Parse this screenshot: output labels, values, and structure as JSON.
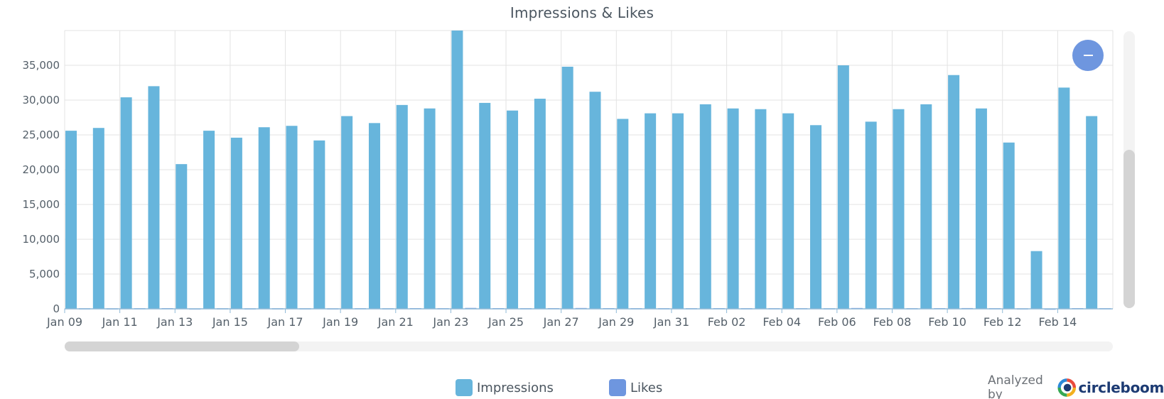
{
  "chart_data": {
    "type": "bar",
    "title": "Impressions & Likes",
    "xlabel": "",
    "ylabel": "",
    "ylim": [
      0,
      40000
    ],
    "y_ticks": [
      0,
      5000,
      10000,
      15000,
      20000,
      25000,
      30000,
      35000
    ],
    "y_tick_labels": [
      "0",
      "5,000",
      "10,000",
      "15,000",
      "20,000",
      "25,000",
      "30,000",
      "35,000"
    ],
    "categories": [
      "Jan 09",
      "Jan 10",
      "Jan 11",
      "Jan 12",
      "Jan 13",
      "Jan 14",
      "Jan 15",
      "Jan 16",
      "Jan 17",
      "Jan 18",
      "Jan 19",
      "Jan 20",
      "Jan 21",
      "Jan 22",
      "Jan 23",
      "Jan 24",
      "Jan 25",
      "Jan 26",
      "Jan 27",
      "Jan 28",
      "Jan 29",
      "Jan 30",
      "Jan 31",
      "Feb 01",
      "Feb 02",
      "Feb 03",
      "Feb 04",
      "Feb 05",
      "Feb 06",
      "Feb 07",
      "Feb 08",
      "Feb 09",
      "Feb 10",
      "Feb 11",
      "Feb 12",
      "Feb 13",
      "Feb 14",
      "Feb 15"
    ],
    "x_tick_labels": [
      "Jan 09",
      "Jan 11",
      "Jan 13",
      "Jan 15",
      "Jan 17",
      "Jan 19",
      "Jan 21",
      "Jan 23",
      "Jan 25",
      "Jan 27",
      "Jan 29",
      "Jan 31",
      "Feb 02",
      "Feb 04",
      "Feb 06",
      "Feb 08",
      "Feb 10",
      "Feb 12",
      "Feb 14"
    ],
    "grid": true,
    "legend_position": "bottom-center",
    "series": [
      {
        "name": "Impressions",
        "color": "#67b5dc",
        "values": [
          25600,
          26000,
          30400,
          32000,
          20800,
          25600,
          24600,
          26100,
          26300,
          24200,
          27700,
          26700,
          29300,
          28800,
          40000,
          29600,
          28500,
          30200,
          34800,
          31200,
          27300,
          28100,
          28100,
          29400,
          28800,
          28700,
          28100,
          26400,
          35000,
          26900,
          28700,
          29400,
          33600,
          28800,
          23900,
          8300,
          31800,
          27700
        ]
      },
      {
        "name": "Likes",
        "color": "#6e96df",
        "values": [
          80,
          70,
          90,
          100,
          60,
          80,
          70,
          80,
          80,
          70,
          90,
          80,
          100,
          90,
          130,
          100,
          90,
          100,
          120,
          100,
          90,
          90,
          90,
          100,
          90,
          90,
          90,
          80,
          120,
          80,
          90,
          100,
          110,
          90,
          70,
          30,
          100,
          90
        ]
      }
    ]
  },
  "controls": {
    "collapse_icon": "minus-icon"
  },
  "branding": {
    "analyzed_by": "Analyzed by",
    "brand_name": "circleboom",
    "logo_icon": "circleboom-logo-icon"
  }
}
